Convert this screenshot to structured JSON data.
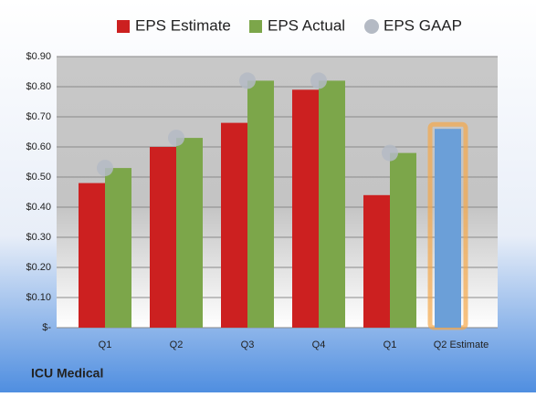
{
  "chart_data": {
    "type": "bar",
    "categories": [
      "Q1",
      "Q2",
      "Q3",
      "Q4",
      "Q1",
      "Q2 Estimate"
    ],
    "series": [
      {
        "name": "EPS Estimate",
        "color": "#cc2020",
        "values": [
          0.48,
          0.6,
          0.68,
          0.79,
          0.44,
          0.66
        ],
        "highlight_last_color": "#6b9fd8"
      },
      {
        "name": "EPS Actual",
        "color": "#7ca64a",
        "values": [
          0.53,
          0.63,
          0.82,
          0.82,
          0.58,
          null
        ]
      },
      {
        "name": "EPS GAAP",
        "color": "#b4bac4",
        "marker": "circle",
        "values": [
          0.53,
          0.63,
          0.82,
          0.82,
          0.58,
          null
        ]
      }
    ],
    "ylim": [
      0,
      0.9
    ],
    "yticks": [
      {
        "value": 0,
        "label": "$-"
      },
      {
        "value": 0.1,
        "label": "$0.10"
      },
      {
        "value": 0.2,
        "label": "$0.20"
      },
      {
        "value": 0.3,
        "label": "$0.30"
      },
      {
        "value": 0.4,
        "label": "$0.40"
      },
      {
        "value": 0.5,
        "label": "$0.50"
      },
      {
        "value": 0.6,
        "label": "$0.60"
      },
      {
        "value": 0.7,
        "label": "$0.70"
      },
      {
        "value": 0.8,
        "label": "$0.80"
      },
      {
        "value": 0.9,
        "label": "$0.90"
      }
    ],
    "grid": true,
    "footer": "ICU Medical"
  }
}
